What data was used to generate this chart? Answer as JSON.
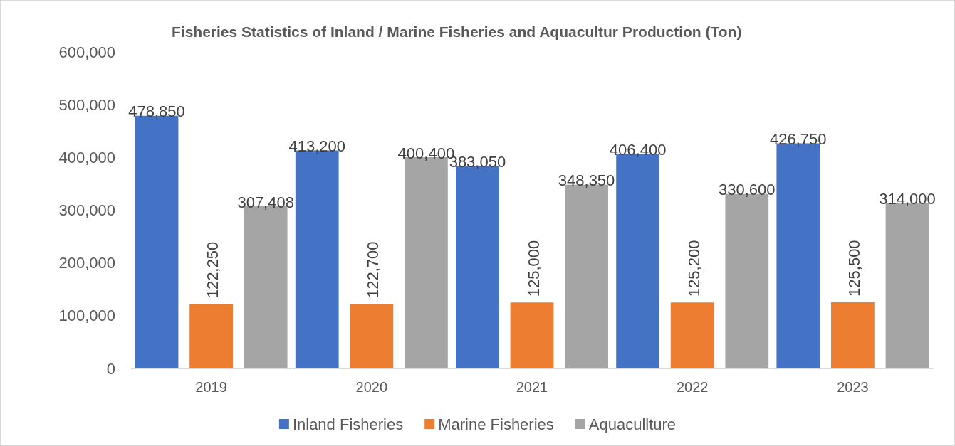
{
  "chart_data": {
    "type": "bar",
    "title": "Fisheries Statistics of Inland / Marine Fisheries and Aquacultur Production (Ton)",
    "categories": [
      "2019",
      "2020",
      "2021",
      "2022",
      "2023"
    ],
    "series": [
      {
        "name": "Inland Fisheries",
        "color": "#4472c4",
        "values": [
          478850,
          413200,
          383050,
          406400,
          426750
        ],
        "value_labels": [
          "478,850",
          "413,200",
          "383,050",
          "406,400",
          "426,750"
        ]
      },
      {
        "name": "Marine Fisheries",
        "color": "#ed7d31",
        "values": [
          122250,
          122700,
          125000,
          125200,
          125500
        ],
        "value_labels": [
          "122,250",
          "122,700",
          "125,000",
          "125,200",
          "125,500"
        ]
      },
      {
        "name": "Aquacullture",
        "color": "#a5a5a5",
        "values": [
          307408,
          400400,
          348350,
          330600,
          314000
        ],
        "value_labels": [
          "307,408",
          "400,400",
          "348,350",
          "330,600",
          "314,000"
        ]
      }
    ],
    "ylim": [
      0,
      600000
    ],
    "yticks": [
      0,
      {
        "value": 100000,
        "label": "100,000"
      },
      {
        "value": 200000,
        "label": "200,000"
      },
      {
        "value": 300000,
        "label": "300,000"
      },
      {
        "value": 400000,
        "label": "400,000"
      },
      {
        "value": 500000,
        "label": "500,000"
      },
      {
        "value": 600000,
        "label": "600,000"
      }
    ],
    "grid": false,
    "legend": "bottom"
  }
}
